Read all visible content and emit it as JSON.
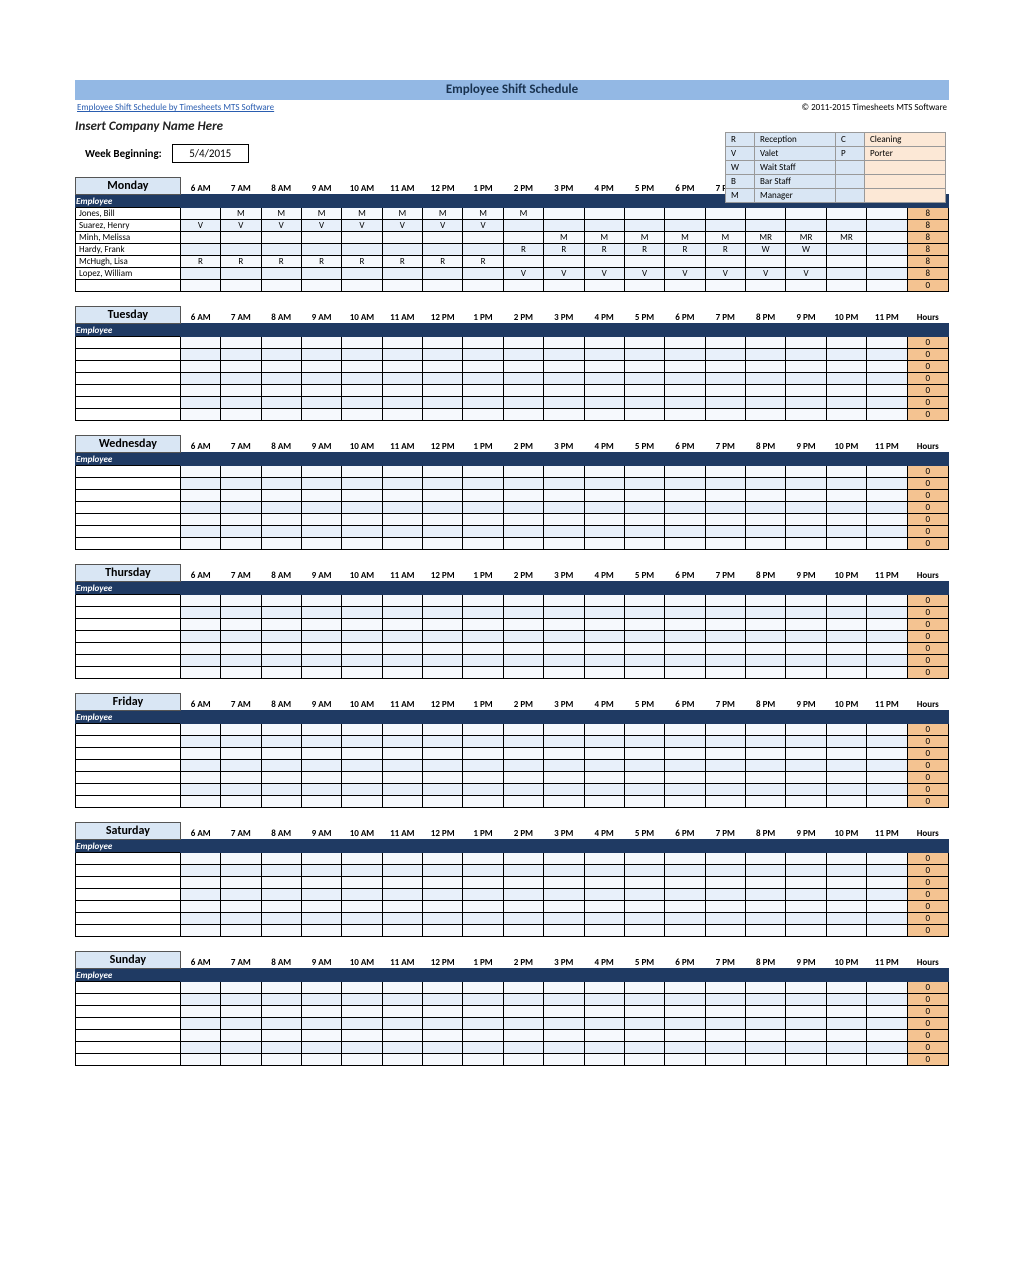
{
  "title": "Employee Shift Schedule",
  "softwareLink": "Employee Shift Schedule by Timesheets MTS Software",
  "copyright": "© 2011-2015 Timesheets MTS Software",
  "companyName": "Insert Company Name Here",
  "weekLabel": "Week Beginning:",
  "weekDate": "5/4/2015",
  "legend": [
    {
      "code": "R",
      "name": "Reception",
      "code2": "C",
      "name2": "Cleaning"
    },
    {
      "code": "V",
      "name": "Valet",
      "code2": "P",
      "name2": "Porter"
    },
    {
      "code": "W",
      "name": "Wait Staff",
      "code2": "",
      "name2": ""
    },
    {
      "code": "B",
      "name": "Bar Staff",
      "code2": "",
      "name2": ""
    },
    {
      "code": "M",
      "name": "Manager",
      "code2": "",
      "name2": ""
    }
  ],
  "timeHeads": [
    "6 AM",
    "7 AM",
    "8 AM",
    "9 AM",
    "10 AM",
    "11 AM",
    "12 PM",
    "1 PM",
    "2 PM",
    "3 PM",
    "4 PM",
    "5 PM",
    "6 PM",
    "7 PM",
    "8 PM",
    "9 PM",
    "10 PM",
    "11 PM"
  ],
  "employeeHead": "Employee",
  "hoursHead": "Hours",
  "days": [
    {
      "name": "Monday",
      "rows": [
        {
          "emp": "Jones, Bill",
          "cells": [
            "",
            "M",
            "M",
            "M",
            "M",
            "M",
            "M",
            "M",
            "M",
            "",
            "",
            "",
            "",
            "",
            "",
            "",
            "",
            ""
          ],
          "hours": "8"
        },
        {
          "emp": "Suarez, Henry",
          "cells": [
            "V",
            "V",
            "V",
            "V",
            "V",
            "V",
            "V",
            "V",
            "",
            "",
            "",
            "",
            "",
            "",
            "",
            "",
            "",
            ""
          ],
          "hours": "8"
        },
        {
          "emp": "Minh, Melissa",
          "cells": [
            "",
            "",
            "",
            "",
            "",
            "",
            "",
            "",
            "",
            "M",
            "M",
            "M",
            "M",
            "M",
            "MR",
            "MR",
            "MR",
            ""
          ],
          "hours": "8"
        },
        {
          "emp": "Hardy, Frank",
          "cells": [
            "",
            "",
            "",
            "",
            "",
            "",
            "",
            "",
            "R",
            "R",
            "R",
            "R",
            "R",
            "R",
            "W",
            "W",
            "",
            ""
          ],
          "hours": "8"
        },
        {
          "emp": "McHugh, Lisa",
          "cells": [
            "R",
            "R",
            "R",
            "R",
            "R",
            "R",
            "R",
            "R",
            "",
            "",
            "",
            "",
            "",
            "",
            "",
            "",
            "",
            ""
          ],
          "hours": "8"
        },
        {
          "emp": "Lopez, William",
          "cells": [
            "",
            "",
            "",
            "",
            "",
            "",
            "",
            "",
            "V",
            "V",
            "V",
            "V",
            "V",
            "V",
            "V",
            "V",
            "",
            ""
          ],
          "hours": "8"
        },
        {
          "emp": "",
          "cells": [
            "",
            "",
            "",
            "",
            "",
            "",
            "",
            "",
            "",
            "",
            "",
            "",
            "",
            "",
            "",
            "",
            "",
            ""
          ],
          "hours": "0"
        }
      ]
    },
    {
      "name": "Tuesday",
      "rows": "empty7"
    },
    {
      "name": "Wednesday",
      "rows": "empty7"
    },
    {
      "name": "Thursday",
      "rows": "empty7"
    },
    {
      "name": "Friday",
      "rows": "empty7"
    },
    {
      "name": "Saturday",
      "rows": "empty7"
    },
    {
      "name": "Sunday",
      "rows": "empty7"
    }
  ],
  "colors": {
    "titleBar": "#93b8e4",
    "darkHeader": "#1f3a63",
    "rowLight": "#f6f9fd",
    "rowAlt": "#e8f0fa",
    "hoursBg": "#f4c391",
    "legendCode": "#d9e6f4",
    "legendName": "#fce8d6"
  }
}
